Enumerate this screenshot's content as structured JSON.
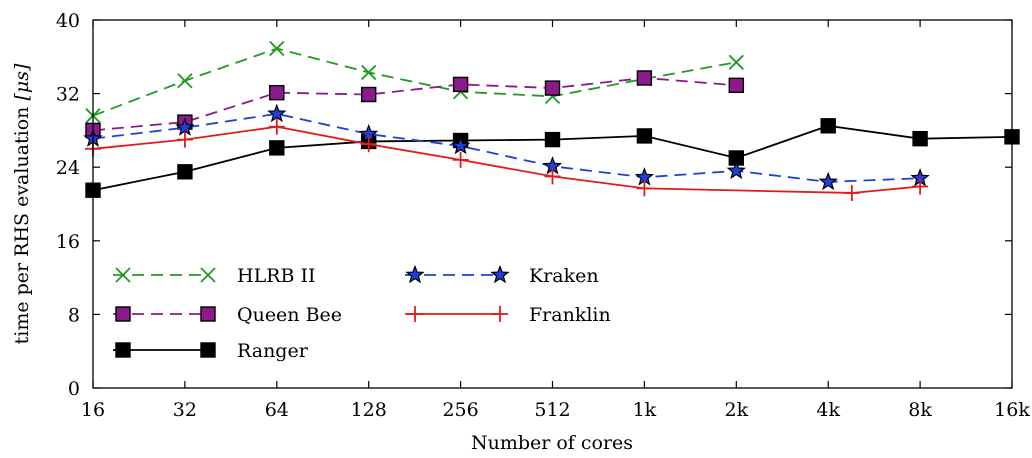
{
  "chart_data": {
    "type": "line",
    "title": "",
    "xlabel": "Number of cores",
    "ylabel_prefix": "time per RHS evaluation ",
    "ylabel_unit": "[μs]",
    "x_categories": [
      "16",
      "32",
      "64",
      "128",
      "256",
      "512",
      "1k",
      "2k",
      "4k",
      "8k",
      "16k"
    ],
    "x_scale": "log2",
    "ylim": [
      0,
      40
    ],
    "y_ticks": [
      "0",
      "8",
      "16",
      "24",
      "32",
      "40"
    ],
    "grid": false,
    "legend_position": "bottom-left",
    "series": [
      {
        "name": "HLRB II",
        "color": "#229922",
        "line": "dashed",
        "marker": "x",
        "points": [
          [
            16,
            29.6
          ],
          [
            32,
            33.4
          ],
          [
            64,
            36.9
          ],
          [
            128,
            34.3
          ],
          [
            256,
            32.2
          ],
          [
            512,
            31.7
          ],
          [
            1024,
            33.6
          ],
          [
            2048,
            35.4
          ]
        ]
      },
      {
        "name": "Queen Bee",
        "color": "#8b1a8b",
        "line": "dashed",
        "marker": "square",
        "points": [
          [
            16,
            28.0
          ],
          [
            32,
            28.9
          ],
          [
            64,
            32.1
          ],
          [
            128,
            31.9
          ],
          [
            256,
            33.0
          ],
          [
            512,
            32.6
          ],
          [
            1024,
            33.7
          ],
          [
            2048,
            32.9
          ]
        ]
      },
      {
        "name": "Ranger",
        "color": "#000000",
        "line": "solid",
        "marker": "square",
        "points": [
          [
            16,
            21.5
          ],
          [
            32,
            23.5
          ],
          [
            64,
            26.1
          ],
          [
            128,
            26.8
          ],
          [
            256,
            26.9
          ],
          [
            512,
            27.0
          ],
          [
            1024,
            27.4
          ],
          [
            2048,
            25.0
          ],
          [
            4096,
            28.5
          ],
          [
            8192,
            27.1
          ],
          [
            16384,
            27.3
          ]
        ]
      },
      {
        "name": "Kraken",
        "color": "#1f3fd9",
        "line": "dashed",
        "marker": "star",
        "points": [
          [
            16,
            27.1
          ],
          [
            32,
            28.3
          ],
          [
            64,
            29.8
          ],
          [
            128,
            27.6
          ],
          [
            256,
            26.3
          ],
          [
            512,
            24.1
          ],
          [
            1024,
            22.9
          ],
          [
            2048,
            23.6
          ],
          [
            4096,
            22.4
          ],
          [
            8192,
            22.8
          ]
        ]
      },
      {
        "name": "Franklin",
        "color": "#e31a1a",
        "line": "solid",
        "marker": "plus",
        "points": [
          [
            16,
            26.0
          ],
          [
            32,
            27.0
          ],
          [
            64,
            28.4
          ],
          [
            128,
            26.5
          ],
          [
            256,
            24.8
          ],
          [
            512,
            23.0
          ],
          [
            1024,
            21.7
          ],
          [
            4896,
            21.2
          ],
          [
            8192,
            21.9
          ]
        ]
      }
    ]
  }
}
